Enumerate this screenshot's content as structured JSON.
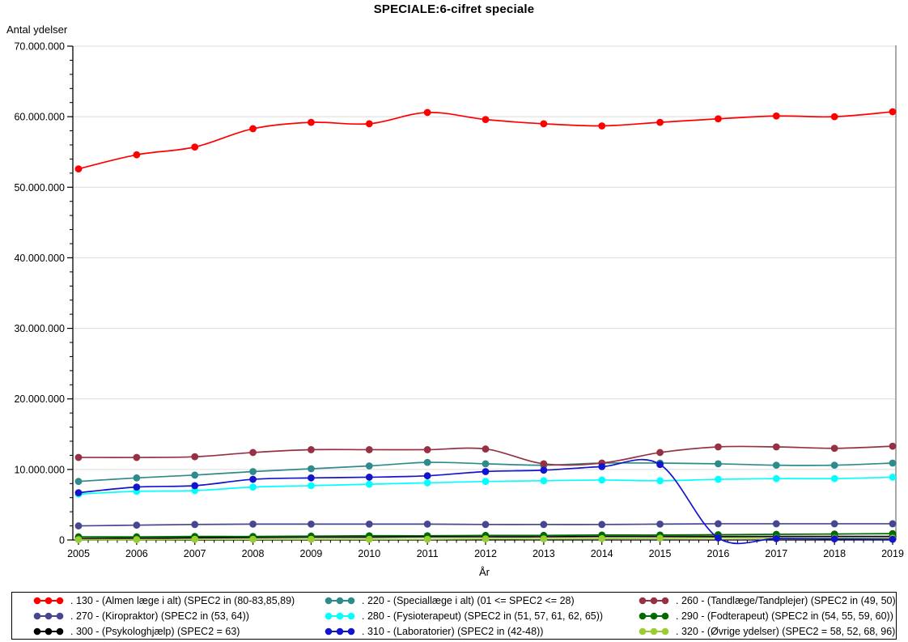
{
  "title": "SPECIALE:6-cifret speciale",
  "y_axis": {
    "label": "Antal ydelser"
  },
  "x_axis": {
    "label": "År"
  },
  "chart_data": {
    "type": "line",
    "title": "SPECIALE:6-cifret speciale",
    "xlabel": "År",
    "ylabel": "Antal ydelser",
    "x": [
      2005,
      2006,
      2007,
      2008,
      2009,
      2010,
      2011,
      2012,
      2013,
      2014,
      2015,
      2016,
      2017,
      2018,
      2019
    ],
    "x_tick_labels": [
      "2005",
      "2006",
      "2007",
      "2008",
      "2009",
      "2010",
      "2011",
      "2012",
      "2013",
      "2014",
      "2015",
      "2016",
      "2017",
      "2018",
      "2019"
    ],
    "ylim": [
      0,
      70000000
    ],
    "y_ticks": [
      0,
      10000000,
      20000000,
      30000000,
      40000000,
      50000000,
      60000000,
      70000000
    ],
    "y_tick_labels": [
      "0",
      "10.000.000",
      "20.000.000",
      "30.000.000",
      "40.000.000",
      "50.000.000",
      "60.000.000",
      "70.000.000"
    ],
    "grid": "horizontal-gridlines",
    "legend_position": "bottom",
    "series": [
      {
        "id": "130",
        "label": ". 130 - (Almen læge i alt) (SPEC2 in (80-83,85,89)",
        "color": "#FF0000",
        "values": [
          52600000,
          54600000,
          55700000,
          58300000,
          59200000,
          59000000,
          60600000,
          59600000,
          59000000,
          58700000,
          59200000,
          59700000,
          60100000,
          60000000,
          60700000
        ]
      },
      {
        "id": "220",
        "label": ". 220 - (Speciallæge i alt) (01 <= SPEC2 <= 28)",
        "color": "#2E8B8B",
        "values": [
          8300000,
          8800000,
          9200000,
          9700000,
          10100000,
          10500000,
          11000000,
          10800000,
          10600000,
          10900000,
          10900000,
          10800000,
          10600000,
          10600000,
          10900000
        ]
      },
      {
        "id": "260",
        "label": ". 260 - (Tandlæge/Tandplejer) (SPEC2  in (49, 50)",
        "color": "#963144",
        "values": [
          11700000,
          11700000,
          11800000,
          12400000,
          12800000,
          12800000,
          12800000,
          12900000,
          10800000,
          10900000,
          12400000,
          13200000,
          13200000,
          13000000,
          13300000
        ]
      },
      {
        "id": "270",
        "label": ". 270 - (Kiropraktor) (SPEC2 in (53, 64))",
        "color": "#47478F",
        "values": [
          2000000,
          2100000,
          2200000,
          2250000,
          2250000,
          2250000,
          2250000,
          2200000,
          2200000,
          2200000,
          2250000,
          2300000,
          2300000,
          2300000,
          2300000
        ]
      },
      {
        "id": "280",
        "label": ". 280 - (Fysioterapeut) (SPEC2 in (51, 57, 61, 62, 65))",
        "color": "#00FFFF",
        "values": [
          6500000,
          6900000,
          7000000,
          7500000,
          7700000,
          7900000,
          8100000,
          8300000,
          8400000,
          8500000,
          8400000,
          8600000,
          8700000,
          8700000,
          8900000
        ]
      },
      {
        "id": "290",
        "label": ". 290 - (Fodterapeut) (SPEC2 in (54, 55, 59, 60))",
        "color": "#006B00",
        "values": [
          450000,
          450000,
          500000,
          500000,
          550000,
          600000,
          600000,
          650000,
          650000,
          700000,
          700000,
          750000,
          800000,
          850000,
          900000
        ]
      },
      {
        "id": "300",
        "label": ". 300 - (Psykologhjælp) (SPEC2 = 63)",
        "color": "#000000",
        "values": [
          200000,
          250000,
          300000,
          350000,
          400000,
          400000,
          450000,
          450000,
          450000,
          500000,
          500000,
          500000,
          500000,
          500000,
          500000
        ]
      },
      {
        "id": "310",
        "label": ". 310 - (Laboratorier) (SPEC2 in (42-48))",
        "color": "#1414CC",
        "values": [
          6700000,
          7500000,
          7700000,
          8600000,
          8800000,
          8900000,
          9100000,
          9700000,
          9900000,
          10400000,
          10700000,
          300000,
          200000,
          150000,
          100000
        ]
      },
      {
        "id": "320",
        "label": ". 320 - (Øvrige ydelser) (SPEC2 = 58, 52, 68, 96)",
        "color": "#9ACD32",
        "values": [
          50000,
          50000,
          100000,
          100000,
          100000,
          100000,
          100000,
          150000,
          150000,
          200000,
          250000,
          300000,
          250000,
          250000,
          250000
        ]
      }
    ]
  }
}
